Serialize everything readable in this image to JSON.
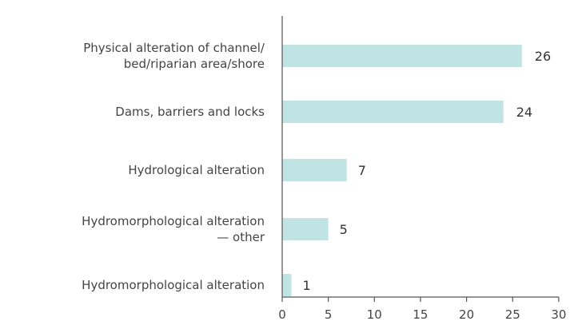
{
  "chart_data": {
    "type": "bar",
    "orientation": "horizontal",
    "categories": [
      "Physical alteration of channel/ bed/riparian area/shore",
      "Dams, barriers and locks",
      "Hydrological alteration",
      "Hydromorphological alteration — other",
      "Hydromorphological alteration"
    ],
    "category_lines": [
      [
        "Physical alteration of channel/",
        "bed/riparian area/shore"
      ],
      [
        "Dams, barriers and locks"
      ],
      [
        "Hydrological alteration"
      ],
      [
        "Hydromorphological alteration",
        "— other"
      ],
      [
        "Hydromorphological alteration"
      ]
    ],
    "values": [
      26,
      24,
      7,
      5,
      1
    ],
    "value_labels": [
      "26",
      "24",
      "7",
      "5",
      "1"
    ],
    "xlim": [
      0,
      30
    ],
    "xticks": [
      0,
      5,
      10,
      15,
      20,
      25,
      30
    ],
    "xtick_labels": [
      "0",
      "5",
      "10",
      "15",
      "20",
      "25",
      "30"
    ],
    "title": "",
    "xlabel": "",
    "ylabel": "",
    "grid": false,
    "bar_color": "#bfe4e3",
    "axis_color": "#555555"
  }
}
